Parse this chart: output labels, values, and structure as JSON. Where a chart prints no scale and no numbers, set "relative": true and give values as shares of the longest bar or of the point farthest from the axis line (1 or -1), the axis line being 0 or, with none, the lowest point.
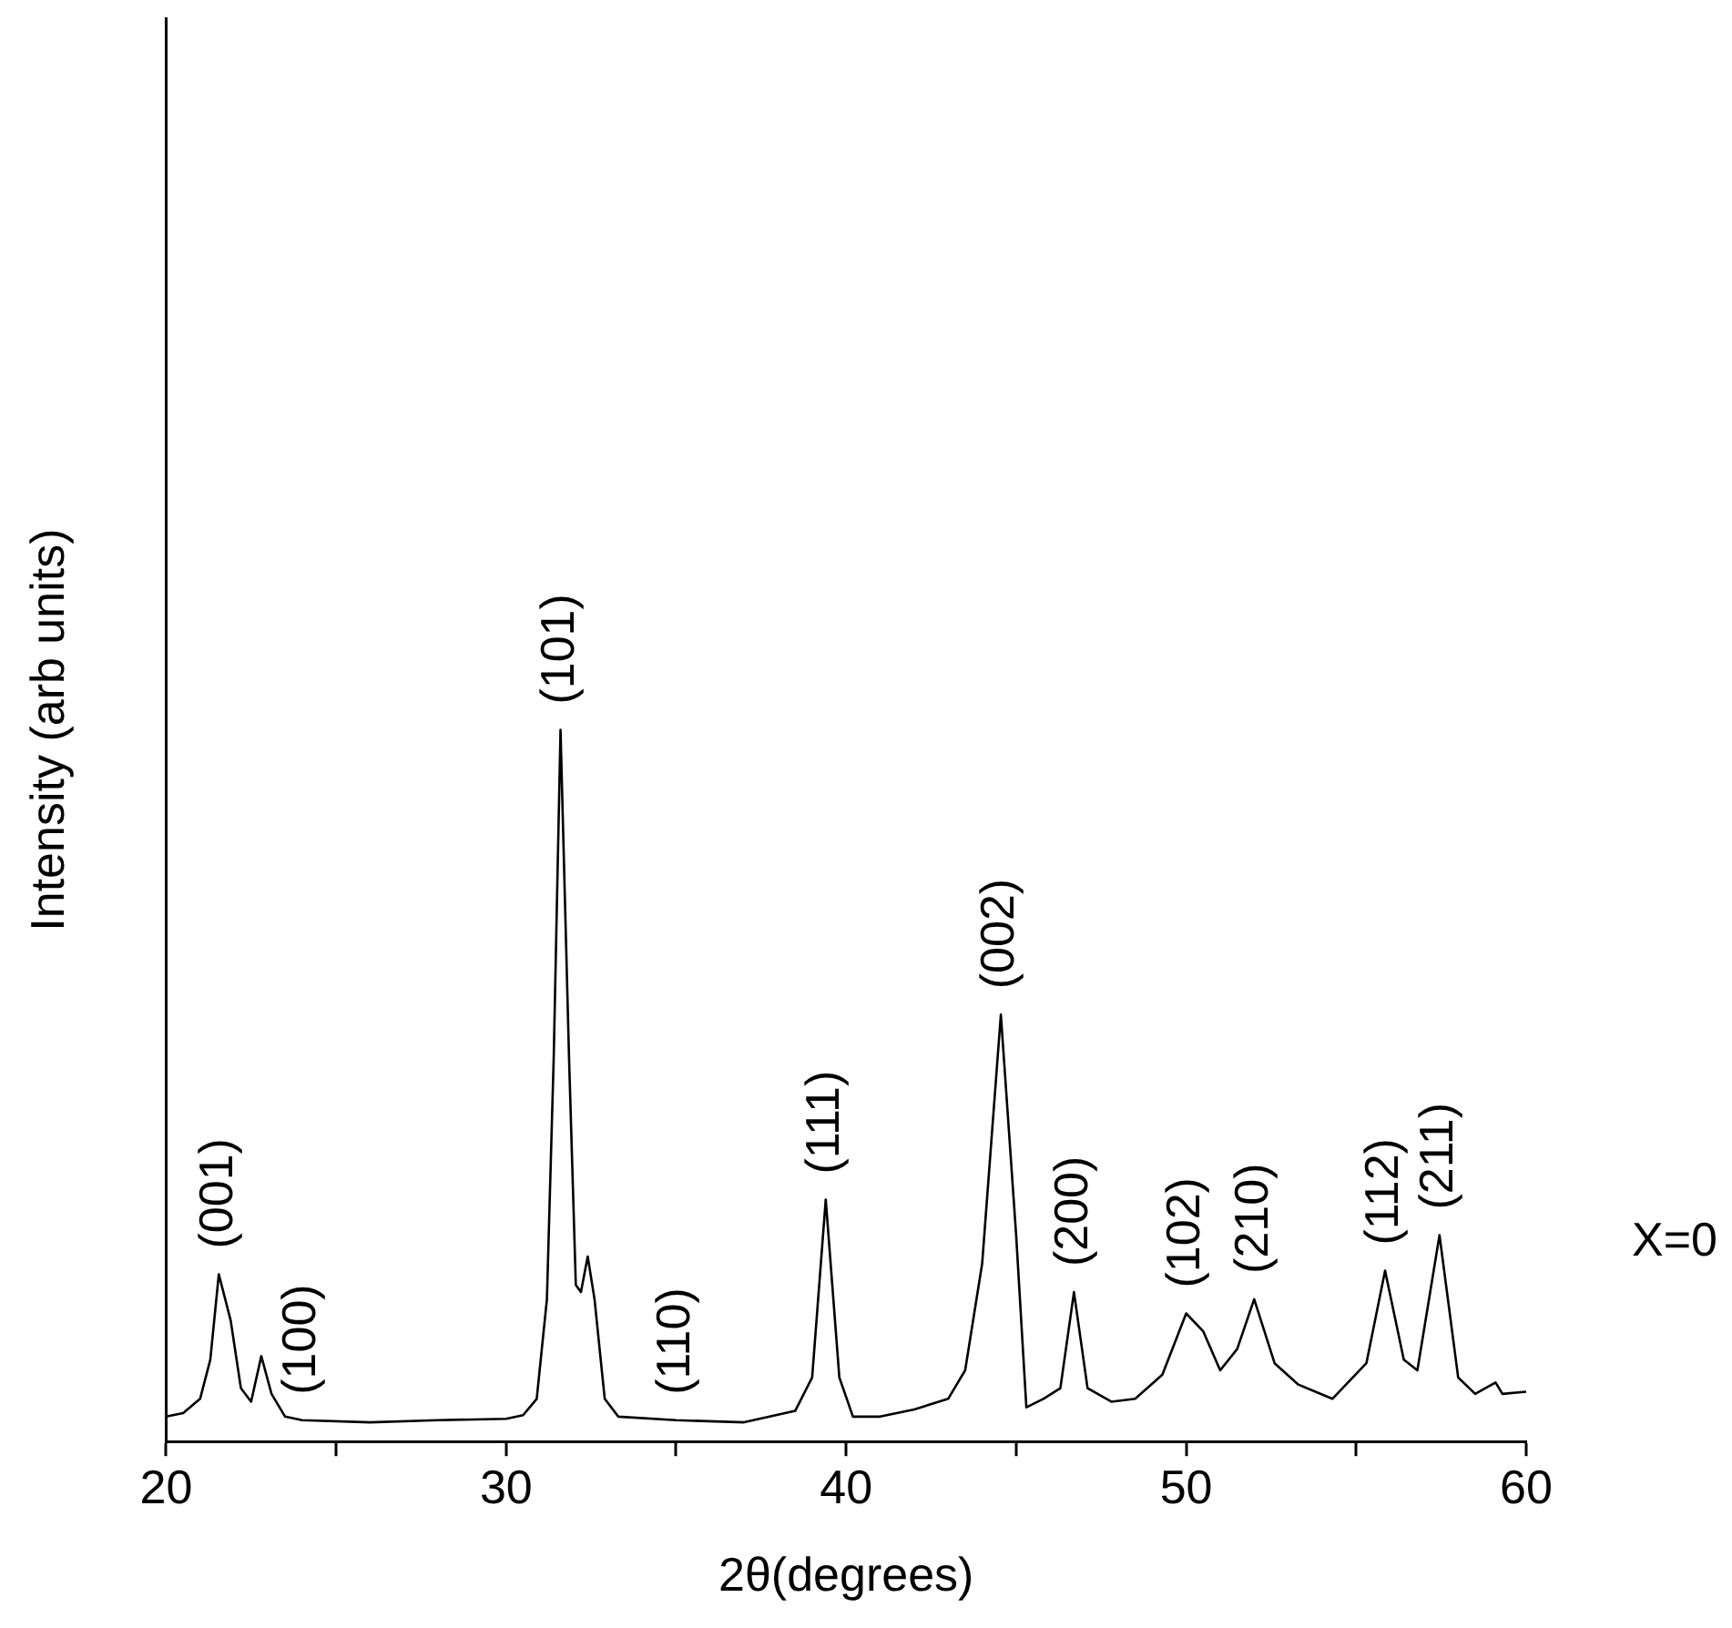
{
  "chart_data": {
    "type": "line",
    "relative": true,
    "xlabel": "2θ(degrees)",
    "ylabel": "Intensity (arb units)",
    "xlim": [
      20,
      60
    ],
    "xticks": [
      20,
      {
        "value": 25,
        "label": null
      },
      30,
      {
        "value": 35,
        "label": null
      },
      40,
      {
        "value": 45,
        "label": null
      },
      50,
      {
        "value": 55,
        "label": null
      },
      60
    ],
    "grid": false,
    "legend": false,
    "marker": "none",
    "line_style": "solid",
    "series": [
      {
        "color": "#000000",
        "x": [
          20,
          20.5,
          21,
          21.3,
          21.55,
          21.9,
          22.2,
          22.5,
          22.8,
          23.1,
          23.5,
          24,
          26,
          28,
          30,
          30.5,
          30.9,
          31.2,
          31.4,
          31.6,
          31.85,
          32.05,
          32.2,
          32.4,
          32.6,
          32.9,
          33.3,
          35,
          37,
          38.5,
          39,
          39.4,
          39.8,
          40.2,
          41,
          42,
          43,
          43.5,
          44,
          44.55,
          45,
          45.3,
          45.8,
          46.3,
          46.7,
          47.1,
          47.8,
          48.5,
          49.3,
          50,
          50.5,
          51,
          51.5,
          52,
          52.6,
          53.3,
          54.3,
          55.3,
          55.85,
          56.4,
          56.8,
          57.45,
          58,
          58.5,
          59.1,
          59.3,
          60
        ],
        "values": [
          0.035,
          0.04,
          0.06,
          0.115,
          0.235,
          0.17,
          0.075,
          0.056,
          0.12,
          0.067,
          0.035,
          0.03,
          0.027,
          0.03,
          0.032,
          0.037,
          0.06,
          0.2,
          0.54,
          1,
          0.54,
          0.22,
          0.21,
          0.26,
          0.2,
          0.06,
          0.035,
          0.03,
          0.027,
          0.043,
          0.09,
          0.34,
          0.09,
          0.035,
          0.035,
          0.045,
          0.06,
          0.1,
          0.25,
          0.6,
          0.29,
          0.048,
          0.06,
          0.075,
          0.21,
          0.075,
          0.056,
          0.06,
          0.094,
          0.18,
          0.155,
          0.1,
          0.13,
          0.2,
          0.11,
          0.08,
          0.06,
          0.11,
          0.24,
          0.115,
          0.1,
          0.29,
          0.09,
          0.067,
          0.083,
          0.067,
          0.07
        ]
      }
    ],
    "annotations": [
      {
        "text": "(001)",
        "x": 21.55,
        "y": 0.235
      },
      {
        "text": "(100)",
        "x": 24,
        "y": 0.03
      },
      {
        "text": "(101)",
        "x": 31.6,
        "y": 1
      },
      {
        "text": "(110)",
        "x": 35,
        "y": 0.03
      },
      {
        "text": "(111)",
        "x": 39.4,
        "y": 0.34
      },
      {
        "text": "(002)",
        "x": 44.55,
        "y": 0.6
      },
      {
        "text": "(200)",
        "x": 46.7,
        "y": 0.21
      },
      {
        "text": "(102)",
        "x": 50,
        "y": 0.18
      },
      {
        "text": "(210)",
        "x": 52,
        "y": 0.2
      },
      {
        "text": "(112)",
        "x": 55.85,
        "y": 0.24
      },
      {
        "text": "(211)",
        "x": 57.45,
        "y": 0.29
      },
      "X=0"
    ]
  }
}
